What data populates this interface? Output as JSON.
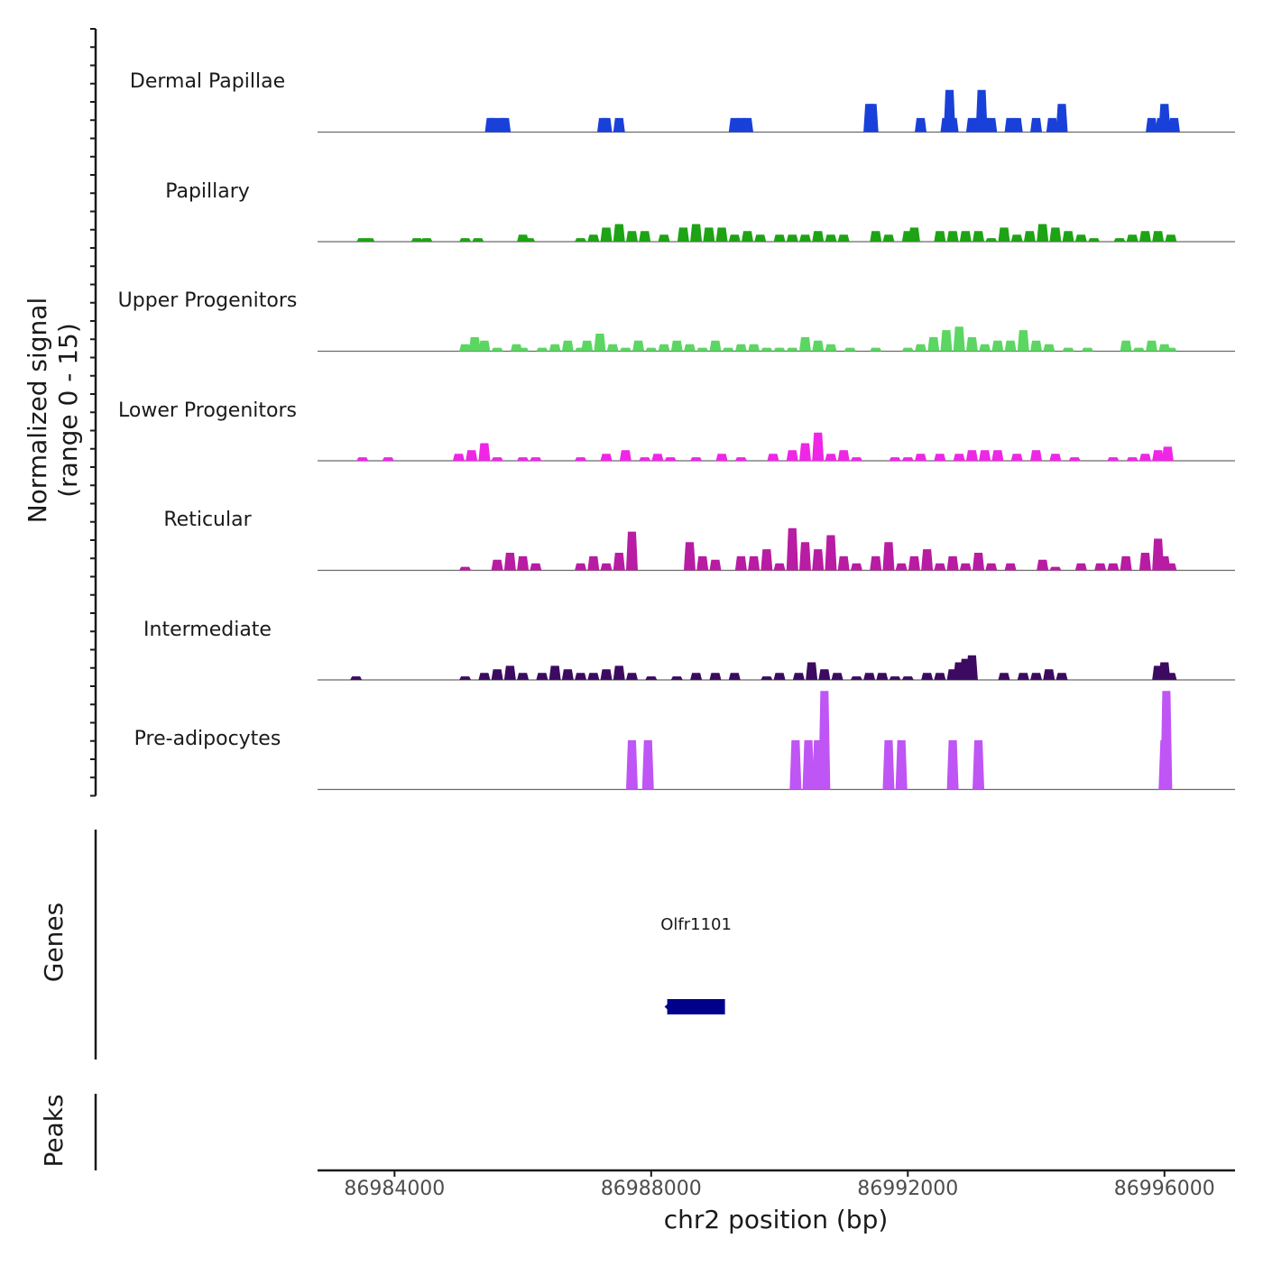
{
  "chart_data": {
    "type": "area",
    "title": "",
    "xlabel": "chr2 position (bp)",
    "ylabel_line1": "Normalized signal",
    "ylabel_line2": "(range 0 - 15)",
    "xlim": [
      86982800,
      86997100
    ],
    "ylim": [
      0,
      15
    ],
    "x_ticks": [
      86984000,
      86988000,
      86992000,
      86996000
    ],
    "x_tick_labels": [
      "86984000",
      "86988000",
      "86992000",
      "86996000"
    ],
    "tracks": [
      {
        "name": "Dermal Papillae",
        "color": "#1940d9",
        "x": [
          86985500,
          86985540,
          86985600,
          86985660,
          86985720,
          86985800,
          86987250,
          86987300,
          86987400,
          86987500,
          86989300,
          86989400,
          86989500,
          86989600,
          86991400,
          86991450,
          86991500,
          86992200,
          86992260,
          86992600,
          86992650,
          86992700,
          86993000,
          86993100,
          86993150,
          86993200,
          86993300,
          86993400,
          86993600,
          86993700,
          86994000,
          86994050,
          86994250,
          86994300,
          86994400,
          86994450,
          86995800,
          86995850,
          86995950,
          86996000,
          86996050,
          86996150
        ],
        "values": [
          2,
          2,
          0,
          2,
          2,
          0,
          2,
          2,
          0,
          2,
          2,
          2,
          2,
          0,
          4,
          4,
          0,
          2,
          0,
          2,
          6,
          2,
          2,
          2,
          6,
          2,
          2,
          0,
          2,
          2,
          2,
          0,
          2,
          0,
          4,
          0,
          2,
          0,
          2,
          4,
          0,
          2
        ]
      },
      {
        "name": "Papillary",
        "color": "#1da314",
        "x": [
          86983500,
          86983600,
          86984350,
          86984500,
          86985100,
          86985300,
          86986000,
          86986100,
          86986900,
          86987100,
          86987300,
          86987500,
          86987700,
          86987900,
          86988200,
          86988500,
          86988700,
          86988900,
          86989100,
          86989300,
          86989500,
          86989700,
          86990000,
          86990200,
          86990400,
          86990600,
          86990800,
          86991000,
          86991300,
          86991500,
          86991700,
          86992000,
          86992100,
          86992300,
          86992500,
          86992700,
          86992900,
          86993100,
          86993300,
          86993500,
          86993700,
          86993900,
          86994100,
          86994300,
          86994500,
          86994700,
          86994900,
          86995300,
          86995500,
          86995700,
          86995900,
          86996100
        ],
        "values": [
          0.5,
          0.5,
          0.5,
          0.5,
          0.5,
          0.5,
          1,
          0.5,
          0.5,
          1,
          2,
          2.5,
          1.5,
          1.5,
          1,
          2,
          2.5,
          2,
          2,
          1,
          1.5,
          1,
          1,
          1,
          1,
          1.5,
          1,
          1,
          0,
          1.5,
          1,
          1.5,
          2,
          0,
          1.5,
          1.5,
          1.5,
          1.5,
          0.5,
          2,
          1,
          1.5,
          2.5,
          2,
          1.5,
          1,
          0.5,
          0.5,
          1,
          1.5,
          1.5,
          1
        ]
      },
      {
        "name": "Upper Progenitors",
        "color": "#5cd663",
        "x": [
          86985100,
          86985250,
          86985400,
          86985600,
          86985900,
          86986000,
          86986300,
          86986500,
          86986700,
          86986900,
          86987000,
          86987200,
          86987400,
          86987600,
          86987800,
          86988000,
          86988200,
          86988400,
          86988600,
          86988800,
          86989000,
          86989200,
          86989400,
          86989600,
          86989800,
          86990000,
          86990200,
          86990400,
          86990600,
          86990800,
          86991100,
          86991500,
          86992000,
          86992200,
          86992400,
          86992600,
          86992800,
          86993000,
          86993200,
          86993400,
          86993600,
          86993800,
          86994000,
          86994200,
          86994500,
          86994800,
          86995400,
          86995600,
          86995800,
          86996000,
          86996100
        ],
        "values": [
          1,
          2,
          1.5,
          0.5,
          1,
          0.5,
          0.5,
          1,
          1.5,
          0.5,
          1.5,
          2.5,
          1,
          0.5,
          1.5,
          0.5,
          1,
          1.5,
          1,
          0.5,
          1.5,
          0.5,
          1,
          1,
          0.5,
          0.5,
          0.5,
          2,
          1.5,
          1,
          0.5,
          0.5,
          0.5,
          1,
          2,
          3,
          3.5,
          2,
          1,
          1.5,
          1.5,
          3,
          1.5,
          1,
          0.5,
          0.5,
          1.5,
          0.5,
          1.5,
          1,
          0.5
        ]
      },
      {
        "name": "Lower Progenitors",
        "color": "#ef26e6",
        "x": [
          86983500,
          86983900,
          86985000,
          86985200,
          86985400,
          86985600,
          86986000,
          86986200,
          86986900,
          86987300,
          86987600,
          86987900,
          86988100,
          86988300,
          86988700,
          86989100,
          86989400,
          86989900,
          86990200,
          86990400,
          86990600,
          86990800,
          86991000,
          86991200,
          86991800,
          86992000,
          86992200,
          86992500,
          86992800,
          86993000,
          86993200,
          86993400,
          86993700,
          86994000,
          86994300,
          86994600,
          86995200,
          86995500,
          86995700,
          86995900,
          86996050
        ],
        "values": [
          0.5,
          0.5,
          1,
          1.5,
          2.5,
          0.5,
          0.5,
          0.5,
          0.5,
          1,
          1.5,
          0.5,
          1,
          0.5,
          0.5,
          1,
          0.5,
          1,
          1.5,
          2.5,
          4,
          1,
          1.5,
          0.5,
          0.5,
          0.5,
          1,
          1,
          1,
          1.5,
          1.5,
          1.5,
          1,
          1.5,
          1,
          0.5,
          0.5,
          0.5,
          1,
          1.5,
          2
        ]
      },
      {
        "name": "Reticular",
        "color": "#b81ca3",
        "x": [
          86985100,
          86985600,
          86985800,
          86986000,
          86986200,
          86986900,
          86987100,
          86987300,
          86987500,
          86987700,
          86988600,
          86988800,
          86989000,
          86989400,
          86989600,
          86989800,
          86990000,
          86990200,
          86990400,
          86990600,
          86990800,
          86991000,
          86991200,
          86991500,
          86991700,
          86991900,
          86992100,
          86992300,
          86992500,
          86992700,
          86992900,
          86993100,
          86993300,
          86993600,
          86994100,
          86994300,
          86994700,
          86995000,
          86995200,
          86995400,
          86995700,
          86995900,
          86996000,
          86996100
        ],
        "values": [
          0.5,
          1.5,
          2.5,
          2,
          1,
          1,
          2,
          1,
          2.5,
          5.5,
          4,
          2,
          1.5,
          2,
          2,
          3,
          1,
          6,
          4,
          3,
          5,
          2,
          1,
          2,
          4,
          1,
          2,
          3,
          1,
          2,
          1,
          2.5,
          1,
          1,
          1.5,
          0.5,
          1,
          1,
          1,
          2,
          2.5,
          4.5,
          2,
          1
        ]
      },
      {
        "name": "Intermediate",
        "color": "#3c0b61",
        "x": [
          86983400,
          86985100,
          86985400,
          86985600,
          86985800,
          86986000,
          86986300,
          86986500,
          86986700,
          86986900,
          86987100,
          86987300,
          86987500,
          86987700,
          86988000,
          86988400,
          86988700,
          86989000,
          86989300,
          86989800,
          86990000,
          86990300,
          86990500,
          86990700,
          86990900,
          86991200,
          86991400,
          86991600,
          86991800,
          86992000,
          86992300,
          86992500,
          86992700,
          86992800,
          86992900,
          86993000,
          86993500,
          86993800,
          86994000,
          86994200,
          86994400,
          86995900,
          86996000,
          86996100
        ],
        "values": [
          0.5,
          0.5,
          1,
          1.5,
          2,
          1,
          1,
          2,
          1.5,
          1,
          1,
          1.5,
          2,
          1,
          0.5,
          0.5,
          1,
          1,
          1,
          0.5,
          1,
          1,
          2.5,
          1.5,
          1,
          0.5,
          1,
          1,
          0.5,
          0.5,
          1,
          1,
          1.5,
          2.5,
          3,
          3.5,
          1,
          1,
          1,
          1.5,
          1,
          2,
          2.5,
          1
        ]
      },
      {
        "name": "Pre-adipocytes",
        "color": "#bf55f5",
        "x": [
          86987700,
          86987950,
          86990250,
          86990450,
          86990600,
          86990700,
          86991700,
          86991900,
          86992700,
          86993100,
          86996000,
          86996030
        ],
        "values": [
          7,
          7,
          7,
          7,
          7,
          14,
          7,
          7,
          7,
          7,
          7,
          14
        ]
      }
    ],
    "genes": {
      "label": "Genes",
      "items": [
        {
          "name": "Olfr1101",
          "start": 86988250,
          "end": 86989150,
          "strand": "-",
          "color": "#00008b"
        }
      ]
    },
    "peaks": {
      "label": "Peaks",
      "items": []
    }
  }
}
